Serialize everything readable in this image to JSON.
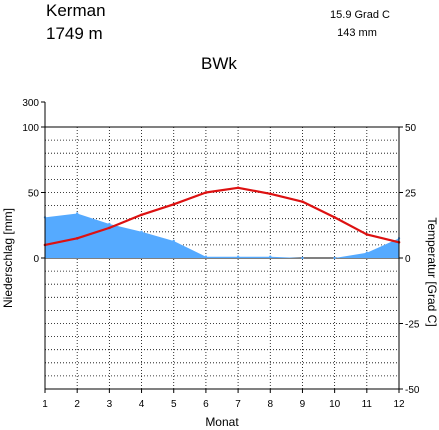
{
  "header": {
    "station": "Kerman",
    "elevation": "1749  m",
    "mean_temp": "15.9 Grad C",
    "annual_precip": "143 mm",
    "climate_class": "BWk"
  },
  "chart_data": {
    "type": "line",
    "xlabel": "Monat",
    "ylabel_left": "Niederschlag [mm]",
    "ylabel_right": "Temperatur [Grad C]",
    "x": [
      1,
      2,
      3,
      4,
      5,
      6,
      7,
      8,
      9,
      10,
      11,
      12
    ],
    "x_ticks": [
      "1",
      "2",
      "3",
      "4",
      "5",
      "6",
      "7",
      "8",
      "9",
      "10",
      "11",
      "12"
    ],
    "precip_ticks": [
      "300",
      "100",
      "50",
      "0"
    ],
    "temp_ticks": [
      "50",
      "25",
      "0",
      "-25",
      "-50"
    ],
    "precip_ylim": [
      0,
      100
    ],
    "temp_ylim": [
      -50,
      50
    ],
    "grid": true,
    "series": [
      {
        "key": "precipitation",
        "unit": "mm",
        "color": "#55aaff",
        "type": "area",
        "values": [
          31,
          34,
          26,
          20,
          13,
          1,
          1,
          1,
          0,
          0,
          4,
          15
        ]
      },
      {
        "key": "temperature",
        "unit": "Grad C",
        "color": "#dd1111",
        "type": "line",
        "values": [
          5.0,
          7.5,
          11.5,
          16.5,
          20.5,
          25.0,
          26.8,
          24.5,
          21.5,
          15.5,
          9.0,
          6.0
        ]
      }
    ]
  }
}
